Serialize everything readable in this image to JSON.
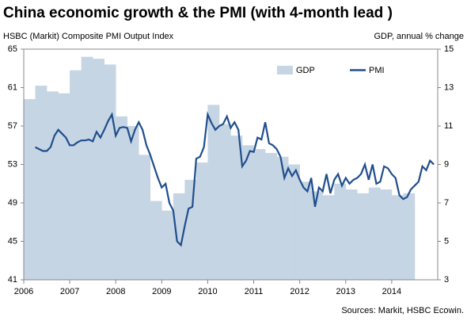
{
  "chart_data": {
    "type": "line",
    "title": "China economic growth & the PMI (with 4-month lead )",
    "y_label": "HSBC (Markit)  Composite PMI Output Index",
    "y2_label": "GDP, annual  % change",
    "source": "Sources: Markit, HSBC Ecowin.",
    "xlim": [
      2006,
      2015
    ],
    "xticks": [
      2006,
      2007,
      2008,
      2009,
      2010,
      2011,
      2012,
      2013,
      2014
    ],
    "ylim": [
      41,
      65
    ],
    "yticks": [
      41,
      45,
      49,
      53,
      57,
      61,
      65
    ],
    "y2lim": [
      3,
      15
    ],
    "y2ticks": [
      3,
      5,
      7,
      9,
      11,
      13,
      15
    ],
    "series": [
      {
        "name": "GDP",
        "kind": "area",
        "axis": "y2",
        "color": "#c6d5e4",
        "x": [
          2006,
          2006.25,
          2006.5,
          2006.75,
          2007,
          2007.25,
          2007.5,
          2007.75,
          2008,
          2008.25,
          2008.5,
          2008.75,
          2009,
          2009.25,
          2009.5,
          2009.75,
          2010,
          2010.25,
          2010.5,
          2010.75,
          2011,
          2011.25,
          2011.5,
          2011.75,
          2012,
          2012.25,
          2012.5,
          2012.75,
          2013,
          2013.25,
          2013.5,
          2013.75,
          2014,
          2014.25
        ],
        "values": [
          12.4,
          13.1,
          12.8,
          12.7,
          13.9,
          14.6,
          14.5,
          14.2,
          11.5,
          11.0,
          9.5,
          7.1,
          6.6,
          7.5,
          8.2,
          9.1,
          12.1,
          11.1,
          10.5,
          10.0,
          9.8,
          9.6,
          9.4,
          9.0,
          8.1,
          7.6,
          7.4,
          8.0,
          7.7,
          7.5,
          7.8,
          7.7,
          7.4,
          7.5
        ]
      },
      {
        "name": "PMI",
        "kind": "line",
        "axis": "y",
        "color": "#1f4e8c",
        "x": [
          2006.25,
          2006.333,
          2006.417,
          2006.5,
          2006.583,
          2006.667,
          2006.75,
          2006.833,
          2006.917,
          2007,
          2007.083,
          2007.167,
          2007.25,
          2007.333,
          2007.417,
          2007.5,
          2007.583,
          2007.667,
          2007.75,
          2007.833,
          2007.917,
          2008,
          2008.083,
          2008.167,
          2008.25,
          2008.333,
          2008.417,
          2008.5,
          2008.583,
          2008.667,
          2008.75,
          2008.833,
          2008.917,
          2009,
          2009.083,
          2009.167,
          2009.25,
          2009.333,
          2009.417,
          2009.5,
          2009.583,
          2009.667,
          2009.75,
          2009.833,
          2009.917,
          2010,
          2010.083,
          2010.167,
          2010.25,
          2010.333,
          2010.417,
          2010.5,
          2010.583,
          2010.667,
          2010.75,
          2010.833,
          2010.917,
          2011,
          2011.083,
          2011.167,
          2011.25,
          2011.333,
          2011.417,
          2011.5,
          2011.583,
          2011.667,
          2011.75,
          2011.833,
          2011.917,
          2012,
          2012.083,
          2012.167,
          2012.25,
          2012.333,
          2012.417,
          2012.5,
          2012.583,
          2012.667,
          2012.75,
          2012.833,
          2012.917,
          2013,
          2013.083,
          2013.167,
          2013.25,
          2013.333,
          2013.417,
          2013.5,
          2013.583,
          2013.667,
          2013.75,
          2013.833,
          2013.917,
          2014,
          2014.083,
          2014.167,
          2014.25,
          2014.333,
          2014.417,
          2014.5,
          2014.583,
          2014.667,
          2014.75,
          2014.833,
          2014.917
        ],
        "values": [
          54.8,
          54.6,
          54.4,
          54.4,
          54.8,
          56.0,
          56.6,
          56.2,
          55.8,
          55.0,
          55.0,
          55.3,
          55.5,
          55.5,
          55.6,
          55.4,
          56.4,
          55.8,
          56.6,
          57.5,
          58.2,
          56.0,
          56.8,
          56.9,
          56.8,
          55.4,
          56.6,
          57.4,
          56.6,
          55.0,
          54.0,
          52.8,
          51.6,
          50.6,
          51.0,
          49.0,
          48.2,
          45.0,
          44.6,
          46.6,
          48.4,
          48.6,
          53.6,
          53.8,
          54.8,
          58.2,
          57.3,
          56.6,
          57.0,
          57.2,
          58.0,
          56.8,
          57.4,
          56.6,
          52.8,
          53.4,
          54.4,
          54.3,
          55.8,
          55.6,
          57.4,
          55.2,
          55.0,
          54.6,
          53.8,
          51.6,
          52.6,
          51.8,
          52.4,
          51.4,
          50.6,
          50.2,
          51.6,
          48.6,
          50.6,
          50.2,
          52.0,
          50.0,
          51.4,
          52.0,
          50.8,
          51.6,
          51.0,
          51.4,
          51.6,
          52.0,
          53.0,
          51.4,
          53.0,
          51.0,
          51.2,
          52.8,
          52.6,
          52.0,
          51.6,
          49.8,
          49.4,
          49.6,
          50.4,
          50.8,
          51.2,
          52.8,
          52.4,
          53.4,
          53.0
        ]
      }
    ]
  }
}
